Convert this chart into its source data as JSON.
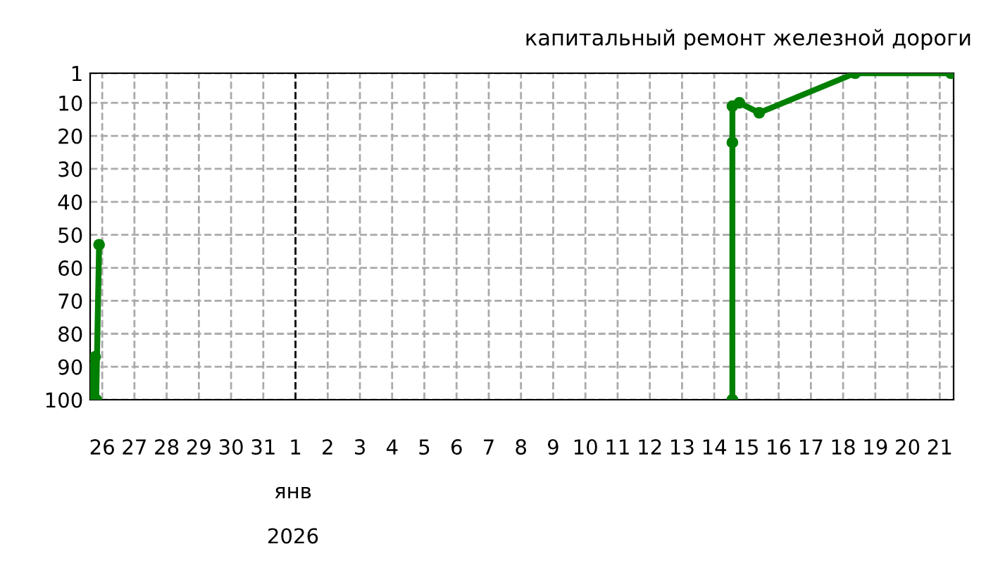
{
  "chart_data": {
    "type": "line",
    "title": "капитальный ремонт железной дороги",
    "x": [
      "2025-12-25T16:20",
      "2025-12-25T17:00",
      "2025-12-25T18:00",
      "2025-12-25T18:40",
      "2025-12-25T19:30",
      "2025-12-25T21:40",
      "2026-01-01T00:00",
      "2026-01-14T13:30",
      "2026-01-14T13:31",
      "2026-01-14T13:32",
      "2026-01-14T18:45",
      "2026-01-15T09:30",
      "2026-01-18T09:00",
      "2026-01-21T08:20"
    ],
    "series": [
      {
        "color": "#008000",
        "values": [
          100,
          90,
          100,
          87,
          100,
          53,
          null,
          100,
          22,
          11,
          10,
          13,
          1,
          1
        ]
      }
    ],
    "xlim": [
      "2025-12-25T15:00",
      "2026-01-21T10:20"
    ],
    "xticks": [
      {
        "value": "2025-12-26",
        "label": "26"
      },
      {
        "value": "2025-12-27",
        "label": "27"
      },
      {
        "value": "2025-12-28",
        "label": "28"
      },
      {
        "value": "2025-12-29",
        "label": "29"
      },
      {
        "value": "2025-12-30",
        "label": "30"
      },
      {
        "value": "2025-12-31",
        "label": "31"
      },
      {
        "value": "2026-01-01",
        "label": "1"
      },
      {
        "value": "2026-01-02",
        "label": "2"
      },
      {
        "value": "2026-01-03",
        "label": "3"
      },
      {
        "value": "2026-01-04",
        "label": "4"
      },
      {
        "value": "2026-01-05",
        "label": "5"
      },
      {
        "value": "2026-01-06",
        "label": "6"
      },
      {
        "value": "2026-01-07",
        "label": "7"
      },
      {
        "value": "2026-01-08",
        "label": "8"
      },
      {
        "value": "2026-01-09",
        "label": "9"
      },
      {
        "value": "2026-01-10",
        "label": "10"
      },
      {
        "value": "2026-01-11",
        "label": "11"
      },
      {
        "value": "2026-01-12",
        "label": "12"
      },
      {
        "value": "2026-01-13",
        "label": "13"
      },
      {
        "value": "2026-01-14",
        "label": "14"
      },
      {
        "value": "2026-01-15",
        "label": "15"
      },
      {
        "value": "2026-01-16",
        "label": "16"
      },
      {
        "value": "2026-01-17",
        "label": "17"
      },
      {
        "value": "2026-01-18",
        "label": "18"
      },
      {
        "value": "2026-01-19",
        "label": "19"
      },
      {
        "value": "2026-01-20",
        "label": "20"
      },
      {
        "value": "2026-01-21",
        "label": "21"
      }
    ],
    "ylim": [
      100,
      1
    ],
    "yticks": [
      1,
      10,
      20,
      30,
      40,
      50,
      60,
      70,
      80,
      90,
      100
    ],
    "ref_lines": [
      {
        "axis": "x",
        "value": "2026-01-01",
        "color": "#000000",
        "line_style": "dashed"
      }
    ],
    "annotations": [
      "янв",
      "2026"
    ],
    "grid": true,
    "marker": "circle",
    "line_style": "solid"
  }
}
